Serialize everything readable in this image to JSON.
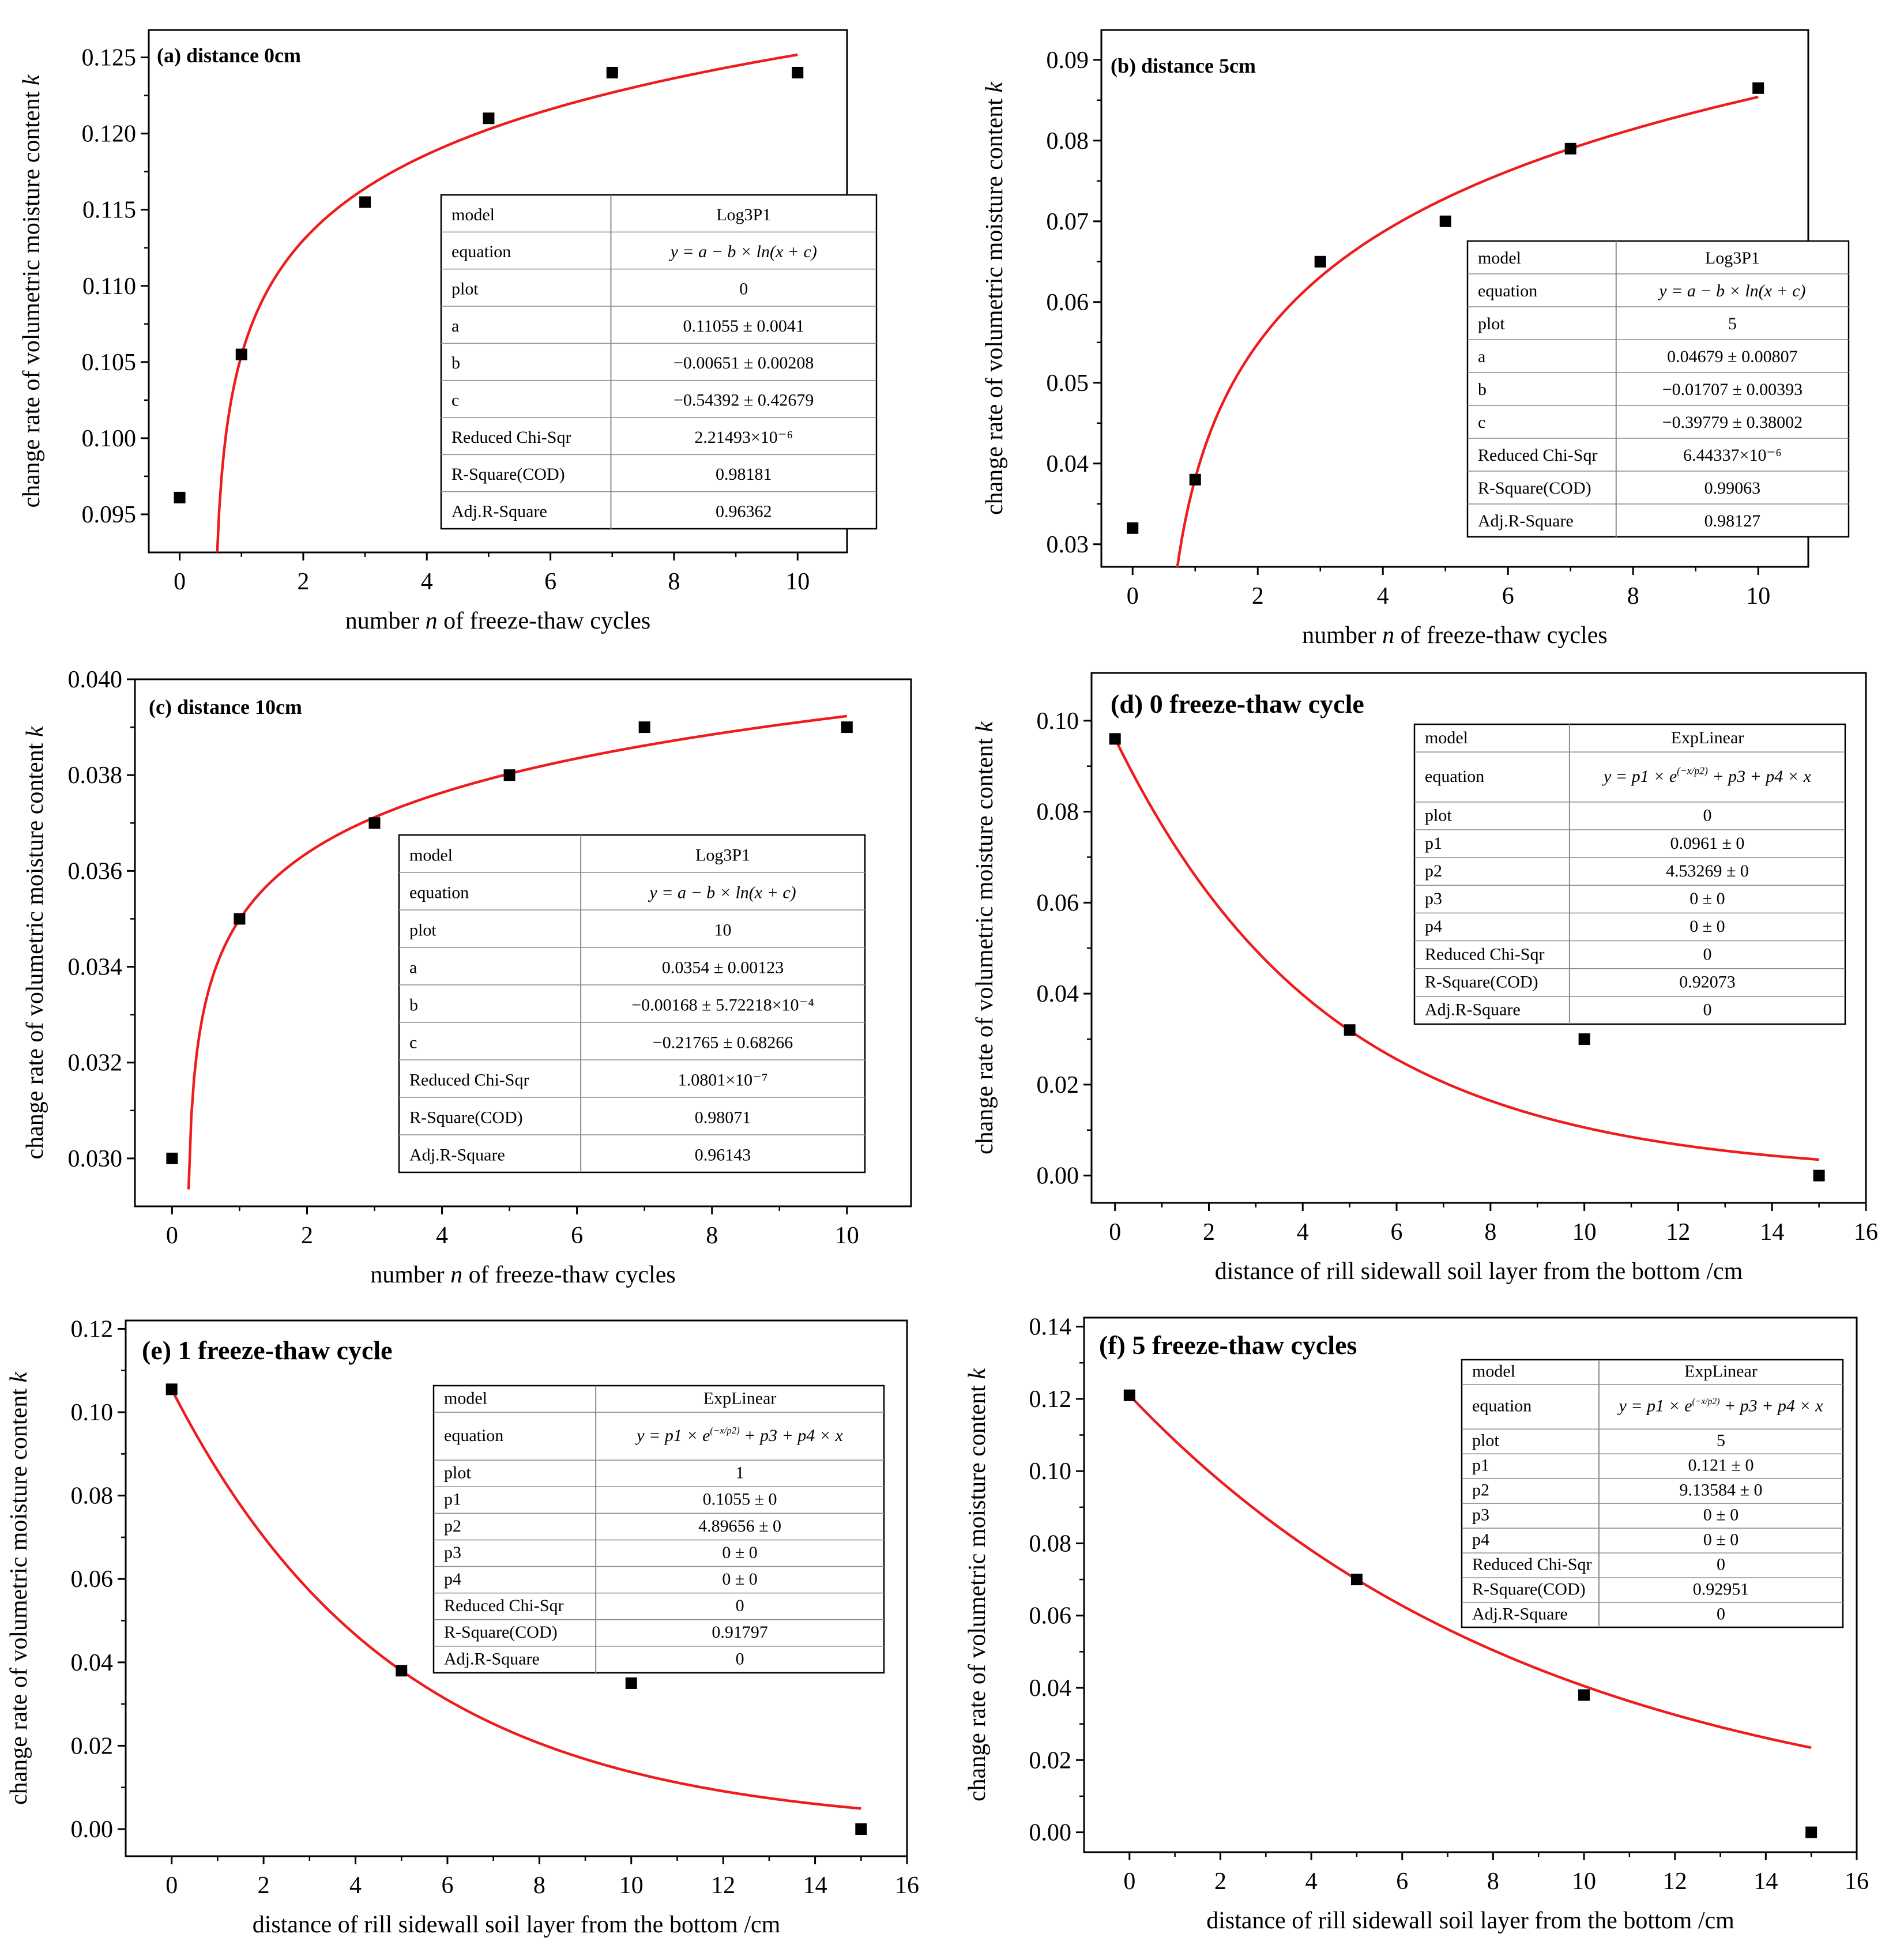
{
  "colors": {
    "fit": "#ee1c1c",
    "point": "#000000",
    "frame": "#000000",
    "table_line": "#8a8a8a"
  },
  "chart_data": [
    {
      "id": "a",
      "type": "scatter",
      "fit_model": "log3p1",
      "title": "(a) distance 0cm",
      "xlabel": "number n of freeze-thaw cycles",
      "xlabel_italic": "n",
      "ylabel": "change rate of volumetric moisture content k",
      "ylabel_italic": "k",
      "xlim": [
        -0.5,
        10.8
      ],
      "ylim": [
        0.0925,
        0.1268
      ],
      "xticks": [
        "0",
        "2",
        "4",
        "6",
        "8",
        "10"
      ],
      "xtick_values": [
        0,
        2,
        4,
        6,
        8,
        10
      ],
      "yticks": [
        "0.095",
        "0.100",
        "0.105",
        "0.110",
        "0.115",
        "0.120",
        "0.125"
      ],
      "ytick_values": [
        0.095,
        0.1,
        0.105,
        0.11,
        0.115,
        0.12,
        0.125
      ],
      "x": [
        0,
        1,
        3,
        5,
        7,
        10
      ],
      "y": [
        0.0961,
        0.1055,
        0.1155,
        0.121,
        0.124,
        0.124
      ],
      "fit_params": {
        "a": 0.11055,
        "b": -0.00651,
        "c": -0.54392
      },
      "fit_x_range": [
        0.6,
        10
      ],
      "table": [
        [
          "model",
          "Log3P1"
        ],
        [
          "equation",
          "y = a − b × ln(x + c)"
        ],
        [
          "plot",
          "0"
        ],
        [
          "a",
          "0.11055 ± 0.0041"
        ],
        [
          "b",
          "−0.00651 ± 0.00208"
        ],
        [
          "c",
          "−0.54392 ± 0.42679"
        ],
        [
          "Reduced Chi-Sqr",
          "2.21493×10⁻⁶"
        ],
        [
          "R-Square(COD)",
          "0.98181"
        ],
        [
          "Adj.R-Square",
          "0.96362"
        ]
      ]
    },
    {
      "id": "b",
      "type": "scatter",
      "fit_model": "log3p1",
      "title": "(b) distance 5cm",
      "xlabel": "number n of freeze-thaw cycles",
      "xlabel_italic": "n",
      "ylabel": "change rate of volumetric moisture content k",
      "ylabel_italic": "k",
      "xlim": [
        -0.5,
        10.8
      ],
      "ylim": [
        0.0272,
        0.0937
      ],
      "xticks": [
        "0",
        "2",
        "4",
        "6",
        "8",
        "10"
      ],
      "xtick_values": [
        0,
        2,
        4,
        6,
        8,
        10
      ],
      "yticks": [
        "0.03",
        "0.04",
        "0.05",
        "0.06",
        "0.07",
        "0.08",
        "0.09"
      ],
      "ytick_values": [
        0.03,
        0.04,
        0.05,
        0.06,
        0.07,
        0.08,
        0.09
      ],
      "x": [
        0,
        1,
        3,
        5,
        7,
        10
      ],
      "y": [
        0.032,
        0.038,
        0.065,
        0.07,
        0.079,
        0.0865
      ],
      "fit_params": {
        "a": 0.04679,
        "b": -0.01707,
        "c": -0.39779
      },
      "fit_x_range": [
        0.67,
        10
      ],
      "table": [
        [
          "model",
          "Log3P1"
        ],
        [
          "equation",
          "y = a − b × ln(x + c)"
        ],
        [
          "plot",
          "5"
        ],
        [
          "a",
          "0.04679 ± 0.00807"
        ],
        [
          "b",
          "−0.01707 ± 0.00393"
        ],
        [
          "c",
          "−0.39779 ± 0.38002"
        ],
        [
          "Reduced Chi-Sqr",
          "6.44337×10⁻⁶"
        ],
        [
          "R-Square(COD)",
          "0.99063"
        ],
        [
          "Adj.R-Square",
          "0.98127"
        ]
      ]
    },
    {
      "id": "c",
      "type": "scatter",
      "fit_model": "log3p1",
      "title": "(c) distance 10cm",
      "xlabel": "number n of freeze-thaw cycles",
      "xlabel_italic": "n",
      "ylabel": "change rate of volumetric moisture content k",
      "ylabel_italic": "k",
      "xlim": [
        -0.55,
        10.95
      ],
      "ylim": [
        0.029,
        0.04
      ],
      "xticks": [
        "0",
        "2",
        "4",
        "6",
        "8",
        "10"
      ],
      "xtick_values": [
        0,
        2,
        4,
        6,
        8,
        10
      ],
      "yticks": [
        "0.030",
        "0.032",
        "0.034",
        "0.036",
        "0.038",
        "0.040"
      ],
      "ytick_values": [
        0.03,
        0.032,
        0.034,
        0.036,
        0.038,
        0.04
      ],
      "x": [
        0,
        1,
        3,
        5,
        7,
        10
      ],
      "y": [
        0.03,
        0.035,
        0.037,
        0.038,
        0.039,
        0.039
      ],
      "fit_params": {
        "a": 0.0354,
        "b": -0.00168,
        "c": -0.21765
      },
      "fit_x_range": [
        0.245,
        10
      ],
      "table": [
        [
          "model",
          "Log3P1"
        ],
        [
          "equation",
          "y = a − b × ln(x + c)"
        ],
        [
          "plot",
          "10"
        ],
        [
          "a",
          "0.0354 ± 0.00123"
        ],
        [
          "b",
          "−0.00168 ± 5.72218×10⁻⁴"
        ],
        [
          "c",
          "−0.21765 ± 0.68266"
        ],
        [
          "Reduced Chi-Sqr",
          "1.0801×10⁻⁷"
        ],
        [
          "R-Square(COD)",
          "0.98071"
        ],
        [
          "Adj.R-Square",
          "0.96143"
        ]
      ]
    },
    {
      "id": "d",
      "type": "scatter",
      "fit_model": "explinear",
      "title": "(d) 0 freeze-thaw cycle",
      "xlabel": "distance of rill sidewall soil layer from the bottom /cm",
      "xlabel_italic": "",
      "ylabel": "change rate of volumetric moisture content k",
      "ylabel_italic": "k",
      "xlim": [
        -0.5,
        16
      ],
      "ylim": [
        -0.006,
        0.1105
      ],
      "xticks": [
        "0",
        "2",
        "4",
        "6",
        "8",
        "10",
        "12",
        "14",
        "16"
      ],
      "xtick_values": [
        0,
        2,
        4,
        6,
        8,
        10,
        12,
        14,
        16
      ],
      "yticks": [
        "0.00",
        "0.02",
        "0.04",
        "0.06",
        "0.08",
        "0.10"
      ],
      "ytick_values": [
        0,
        0.02,
        0.04,
        0.06,
        0.08,
        0.1
      ],
      "x": [
        0,
        5,
        10,
        15
      ],
      "y": [
        0.096,
        0.032,
        0.03,
        0.0
      ],
      "fit_params": {
        "p1": 0.0961,
        "p2": 4.53269,
        "p3": 0,
        "p4": 0
      },
      "fit_x_range": [
        0,
        15
      ],
      "table": [
        [
          "model",
          "ExpLinear"
        ],
        [
          "equation",
          "y = p1 × e^(−x/p2) + p3 + p4 × x"
        ],
        [
          "plot",
          "0"
        ],
        [
          "p1",
          "0.0961 ± 0"
        ],
        [
          "p2",
          "4.53269 ± 0"
        ],
        [
          "p3",
          "0 ± 0"
        ],
        [
          "p4",
          "0 ± 0"
        ],
        [
          "Reduced Chi-Sqr",
          "0"
        ],
        [
          "R-Square(COD)",
          "0.92073"
        ],
        [
          "Adj.R-Square",
          "0"
        ]
      ]
    },
    {
      "id": "e",
      "type": "scatter",
      "fit_model": "explinear",
      "title": "(e) 1 freeze-thaw cycle",
      "xlabel": "distance of rill sidewall soil layer from the bottom /cm",
      "xlabel_italic": "",
      "ylabel": "change rate of volumetric moisture content k",
      "ylabel_italic": "k",
      "xlim": [
        -1,
        16
      ],
      "ylim": [
        -0.0065,
        0.122
      ],
      "xticks": [
        "0",
        "2",
        "4",
        "6",
        "8",
        "10",
        "12",
        "14",
        "16"
      ],
      "xtick_values": [
        0,
        2,
        4,
        6,
        8,
        10,
        12,
        14,
        16
      ],
      "yticks": [
        "0.00",
        "0.02",
        "0.04",
        "0.06",
        "0.08",
        "0.10",
        "0.12"
      ],
      "ytick_values": [
        0,
        0.02,
        0.04,
        0.06,
        0.08,
        0.1,
        0.12
      ],
      "x": [
        0,
        5,
        10,
        15
      ],
      "y": [
        0.1055,
        0.038,
        0.035,
        0.0
      ],
      "fit_params": {
        "p1": 0.1055,
        "p2": 4.89656,
        "p3": 0,
        "p4": 0
      },
      "fit_x_range": [
        0,
        15
      ],
      "table": [
        [
          "model",
          "ExpLinear"
        ],
        [
          "equation",
          "y = p1 × e^(−x/p2) + p3 + p4 × x"
        ],
        [
          "plot",
          "1"
        ],
        [
          "p1",
          "0.1055 ± 0"
        ],
        [
          "p2",
          "4.89656 ± 0"
        ],
        [
          "p3",
          "0 ± 0"
        ],
        [
          "p4",
          "0 ± 0"
        ],
        [
          "Reduced Chi-Sqr",
          "0"
        ],
        [
          "R-Square(COD)",
          "0.91797"
        ],
        [
          "Adj.R-Square",
          "0"
        ]
      ]
    },
    {
      "id": "f",
      "type": "scatter",
      "fit_model": "explinear",
      "title": "(f) 5 freeze-thaw cycles",
      "xlabel": "distance of rill sidewall soil layer from the bottom /cm",
      "xlabel_italic": "",
      "ylabel": "change rate of volumetric moisture content k",
      "ylabel_italic": "k",
      "xlim": [
        -1,
        16
      ],
      "ylim": [
        -0.0055,
        0.1425
      ],
      "xticks": [
        "0",
        "2",
        "4",
        "6",
        "8",
        "10",
        "12",
        "14",
        "16"
      ],
      "xtick_values": [
        0,
        2,
        4,
        6,
        8,
        10,
        12,
        14,
        16
      ],
      "yticks": [
        "0.00",
        "0.02",
        "0.04",
        "0.06",
        "0.08",
        "0.10",
        "0.12",
        "0.14"
      ],
      "ytick_values": [
        0,
        0.02,
        0.04,
        0.06,
        0.08,
        0.1,
        0.12,
        0.14
      ],
      "x": [
        0,
        5,
        10,
        15
      ],
      "y": [
        0.121,
        0.07,
        0.038,
        0.0
      ],
      "fit_params": {
        "p1": 0.121,
        "p2": 9.13584,
        "p3": 0,
        "p4": 0
      },
      "fit_x_range": [
        0,
        15
      ],
      "table": [
        [
          "model",
          "ExpLinear"
        ],
        [
          "equation",
          "y = p1 × e^(−x/p2) + p3 + p4 × x"
        ],
        [
          "plot",
          "5"
        ],
        [
          "p1",
          "0.121 ± 0"
        ],
        [
          "p2",
          "9.13584 ± 0"
        ],
        [
          "p3",
          "0 ± 0"
        ],
        [
          "p4",
          "0 ± 0"
        ],
        [
          "Reduced Chi-Sqr",
          "0"
        ],
        [
          "R-Square(COD)",
          "0.92951"
        ],
        [
          "Adj.R-Square",
          "0"
        ]
      ]
    }
  ]
}
